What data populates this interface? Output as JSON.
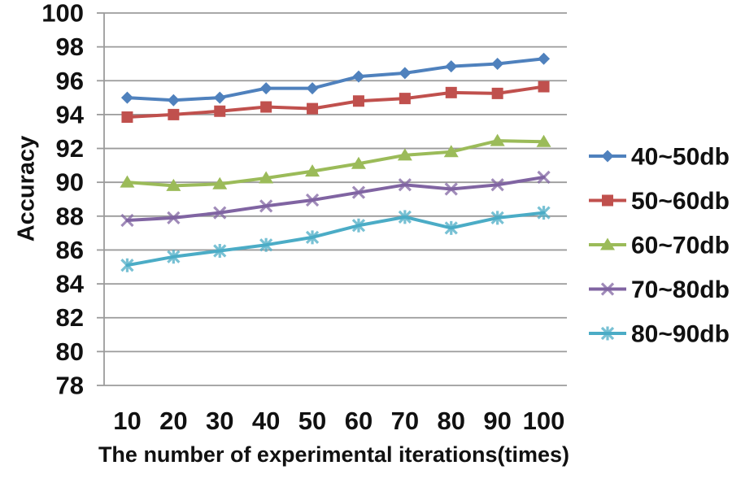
{
  "chart_data": {
    "type": "line",
    "title": "",
    "xlabel": "The number of experimental iterations(times)",
    "ylabel": "Accuracy",
    "x_tick_labels": [
      "10",
      "20",
      "30",
      "40",
      "50",
      "60",
      "70",
      "80",
      "90",
      "100"
    ],
    "x": [
      10,
      20,
      30,
      40,
      50,
      60,
      70,
      80,
      90,
      100
    ],
    "ylim": [
      78,
      100
    ],
    "ytick_step": 2,
    "grid": true,
    "legend_position": "right",
    "series": [
      {
        "name": "40~50db",
        "marker": "diamond",
        "color": "#4F81BD",
        "values": [
          95.0,
          94.85,
          95.0,
          95.55,
          95.55,
          96.25,
          96.45,
          96.85,
          97.0,
          97.3
        ]
      },
      {
        "name": "50~60db",
        "marker": "square",
        "color": "#C0504D",
        "values": [
          93.85,
          94.0,
          94.2,
          94.45,
          94.35,
          94.8,
          94.95,
          95.3,
          95.25,
          95.65
        ]
      },
      {
        "name": "60~70db",
        "marker": "triangle",
        "color": "#9BBB59",
        "values": [
          90.0,
          89.8,
          89.9,
          90.25,
          90.65,
          91.1,
          91.6,
          91.8,
          92.45,
          92.4
        ]
      },
      {
        "name": "70~80db",
        "marker": "x",
        "color": "#8064A2",
        "values": [
          87.75,
          87.9,
          88.2,
          88.6,
          88.95,
          89.4,
          89.85,
          89.6,
          89.85,
          90.3
        ]
      },
      {
        "name": "80~90db",
        "marker": "asterisk",
        "color": "#4BACC6",
        "values": [
          85.1,
          85.6,
          85.95,
          86.3,
          86.75,
          87.45,
          87.95,
          87.3,
          87.9,
          88.2
        ]
      }
    ],
    "grid_color": "#9b9b9b",
    "axis_color": "#9b9b9b",
    "text_color": "#111111"
  }
}
